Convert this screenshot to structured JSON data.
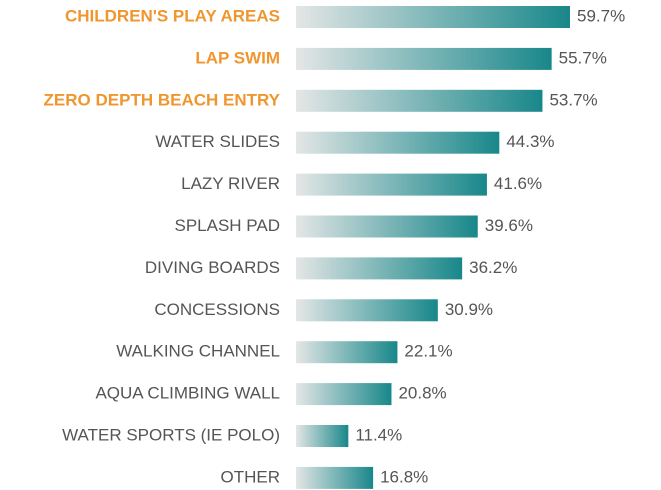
{
  "chart_data": {
    "type": "bar",
    "orientation": "horizontal",
    "categories": [
      "CHILDREN'S PLAY AREAS",
      "LAP SWIM",
      "ZERO DEPTH BEACH ENTRY",
      "WATER SLIDES",
      "LAZY RIVER",
      "SPLASH PAD",
      "DIVING BOARDS",
      "CONCESSIONS",
      "WALKING CHANNEL",
      "AQUA CLIMBING WALL",
      "WATER SPORTS (IE POLO)",
      "OTHER"
    ],
    "values": [
      59.7,
      55.7,
      53.7,
      44.3,
      41.6,
      39.6,
      36.2,
      30.9,
      22.1,
      20.8,
      11.4,
      16.8
    ],
    "value_labels": [
      "59.7%",
      "55.7%",
      "53.7%",
      "44.3%",
      "41.6%",
      "39.6%",
      "36.2%",
      "30.9%",
      "22.1%",
      "20.8%",
      "11.4%",
      "16.8%"
    ],
    "color": "#18878a",
    "gradient_start_color": "#e4e6e6",
    "label_colors": [
      "#f0962e",
      "#f0962e",
      "#f0962e",
      "#555555",
      "#555555",
      "#555555",
      "#555555",
      "#555555",
      "#555555",
      "#555555",
      "#555555",
      "#555555"
    ]
  }
}
